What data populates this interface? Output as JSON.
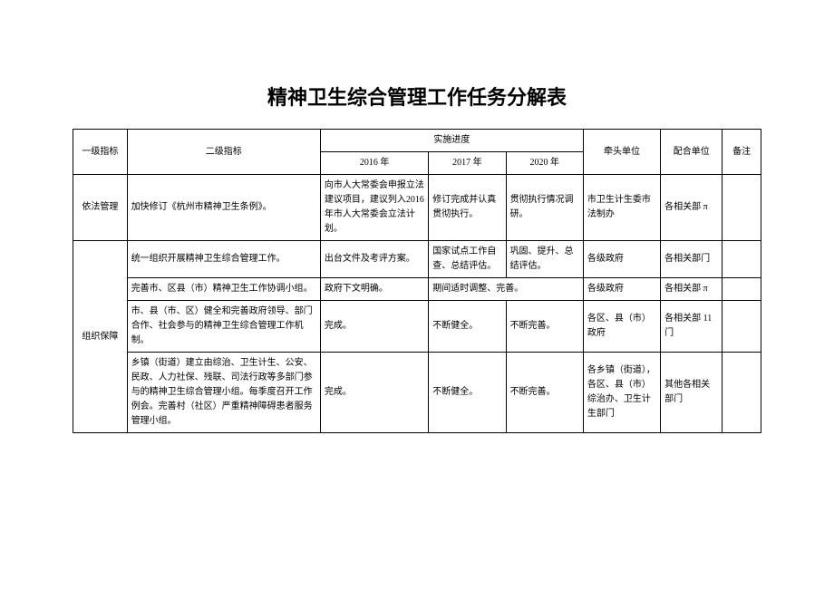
{
  "title": "精神卫生综合管理工作任务分解表",
  "headers": {
    "level1": "一级指标",
    "level2": "二级指标",
    "progress": "实施进度",
    "y2016": "2016 年",
    "y2017": "2017 年",
    "y2020": "2020 年",
    "lead": "牵头单位",
    "coop": "配合单位",
    "note": "备注"
  },
  "rows": [
    {
      "l1": "依法管理",
      "l2": "加快修订《杭州市精神卫生条例》。",
      "y2016": "向市人大常委会申报立法建议项目，建议列入2016 年市人大常委会立法计划。",
      "y2017": "修订完成并认真贯彻执行。",
      "y2020": "贯彻执行情况调研。",
      "lead": "市卫生计生委市法制办",
      "coop": "各相关部 π",
      "note": ""
    },
    {
      "l1": "组织保障",
      "l2": "统一组织开展精神卫生综合管理工作。",
      "y2016": "出台文件及考评方案。",
      "y2017": "国家试点工作自查、总结评估。",
      "y2020": "巩固、提升、总结评估。",
      "lead": "各级政府",
      "coop": "各相关部门",
      "note": ""
    },
    {
      "l1": "",
      "l2": "完善市、区县（市）精神卫生工作协调小组。",
      "y2016": "政府下文明确。",
      "y2017": "期间适时调整、完善。",
      "y2020": "",
      "lead": "各级政府",
      "coop": "各相关部 π",
      "note": ""
    },
    {
      "l1": "",
      "l2": "市、县（市、区）健全和完善政府领导、部门合作、社会参与的精神卫生综合管理工作机制。",
      "y2016": "完成。",
      "y2017": "不断健全。",
      "y2020": "不断完善。",
      "lead": "各区、县（市）政府",
      "coop": "各相关部 11 门",
      "note": ""
    },
    {
      "l1": "",
      "l2": "乡镇（街道）建立由综治、卫生计生、公安、民政、人力社保、残联、司法行政等多部门参与的精神卫生综合管理小组。每季度召开工作例会。完善村（社区）严重精神障碍患者服务管理小组。",
      "y2016": "完成。",
      "y2017": "不断健全。",
      "y2020": "不断完善。",
      "lead": "各乡镇（街道），各区、县（市）综治办、卫生计生部门",
      "coop": "其他各相关部门",
      "note": ""
    }
  ]
}
